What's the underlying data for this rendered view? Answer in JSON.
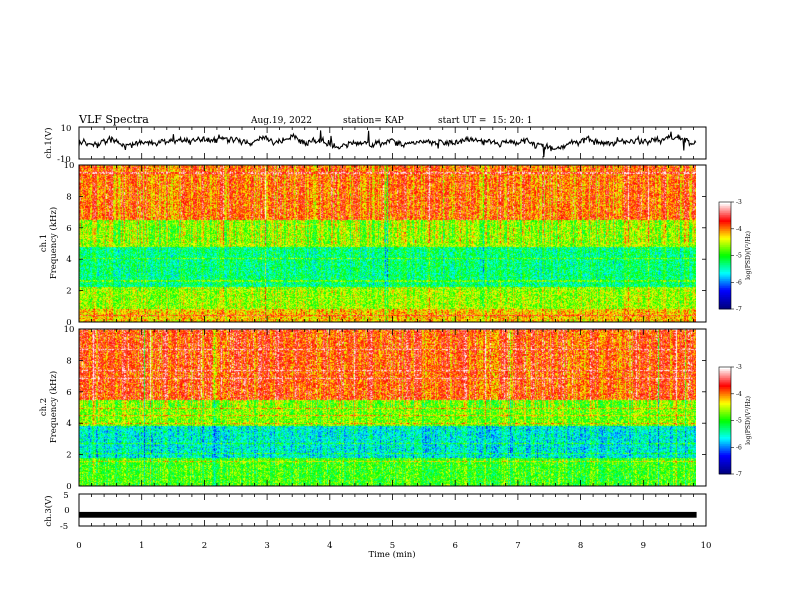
{
  "header": {
    "title": "VLF Spectra",
    "date": "Aug.19, 2022",
    "station": "station= KAP",
    "start_label": "start  UT  =",
    "start_time": "15: 20: 1"
  },
  "chart_data": [
    {
      "type": "line",
      "ylabel": "ch.1(V)",
      "ylim": [
        -10,
        10
      ],
      "yticks": [
        "10",
        "-10"
      ],
      "xlim": [
        0,
        10
      ],
      "x_end": 9.85,
      "level_mean": 0.5,
      "level_amplitude": 3
    },
    {
      "type": "heatmap",
      "ylabel": "ch.1\nFrequency (kHz)",
      "ylim": [
        0,
        10
      ],
      "yticks": [
        "0",
        "2",
        "4",
        "6",
        "8",
        "10"
      ],
      "colorbar": {
        "label": "log(PSD)(V²/Hz)",
        "range": [
          -7,
          -3
        ],
        "ticks": [
          "-7",
          "-6",
          "-5",
          "-4",
          "-3"
        ],
        "colormap": [
          "#00007f",
          "#0000ff",
          "#00ffff",
          "#00ff00",
          "#ffff00",
          "#ff0000",
          "#ffffff"
        ]
      },
      "bands": [
        {
          "f": [
            0,
            0.8
          ],
          "level": -4.2
        },
        {
          "f": [
            0.8,
            2.2
          ],
          "level": -4.6
        },
        {
          "f": [
            2.2,
            4.8
          ],
          "level": -5.3
        },
        {
          "f": [
            4.8,
            6.5
          ],
          "level": -4.6
        },
        {
          "f": [
            6.5,
            10
          ],
          "level": -3.9
        }
      ]
    },
    {
      "type": "heatmap",
      "ylabel": "ch.2\nFrequency (kHz)",
      "ylim": [
        0,
        10
      ],
      "yticks": [
        "0",
        "2",
        "4",
        "6",
        "8",
        "10"
      ],
      "colorbar": {
        "label": "log(PSD)(V²/Hz)",
        "range": [
          -7,
          -3
        ],
        "ticks": [
          "-7",
          "-6",
          "-5",
          "-4",
          "-3"
        ],
        "colormap": [
          "#00007f",
          "#0000ff",
          "#00ffff",
          "#00ff00",
          "#ffff00",
          "#ff0000",
          "#ffffff"
        ]
      },
      "bands": [
        {
          "f": [
            0,
            1.8
          ],
          "level": -4.9
        },
        {
          "f": [
            1.8,
            3.8
          ],
          "level": -5.6
        },
        {
          "f": [
            3.8,
            5.5
          ],
          "level": -4.7
        },
        {
          "f": [
            5.5,
            10
          ],
          "level": -3.8
        }
      ]
    },
    {
      "type": "line",
      "ylabel": "ch.3(V)",
      "ylim": [
        -5,
        5
      ],
      "yticks": [
        "5",
        "0",
        "-5"
      ],
      "xlim": [
        0,
        10
      ],
      "x_end": 9.85,
      "level_mean": -1.5,
      "level_amplitude": 0.3
    }
  ],
  "xaxis": {
    "label": "Time  (min)",
    "ticks": [
      "0",
      "1",
      "2",
      "3",
      "4",
      "5",
      "6",
      "7",
      "8",
      "9",
      "10"
    ],
    "xlim": [
      0,
      10
    ]
  }
}
